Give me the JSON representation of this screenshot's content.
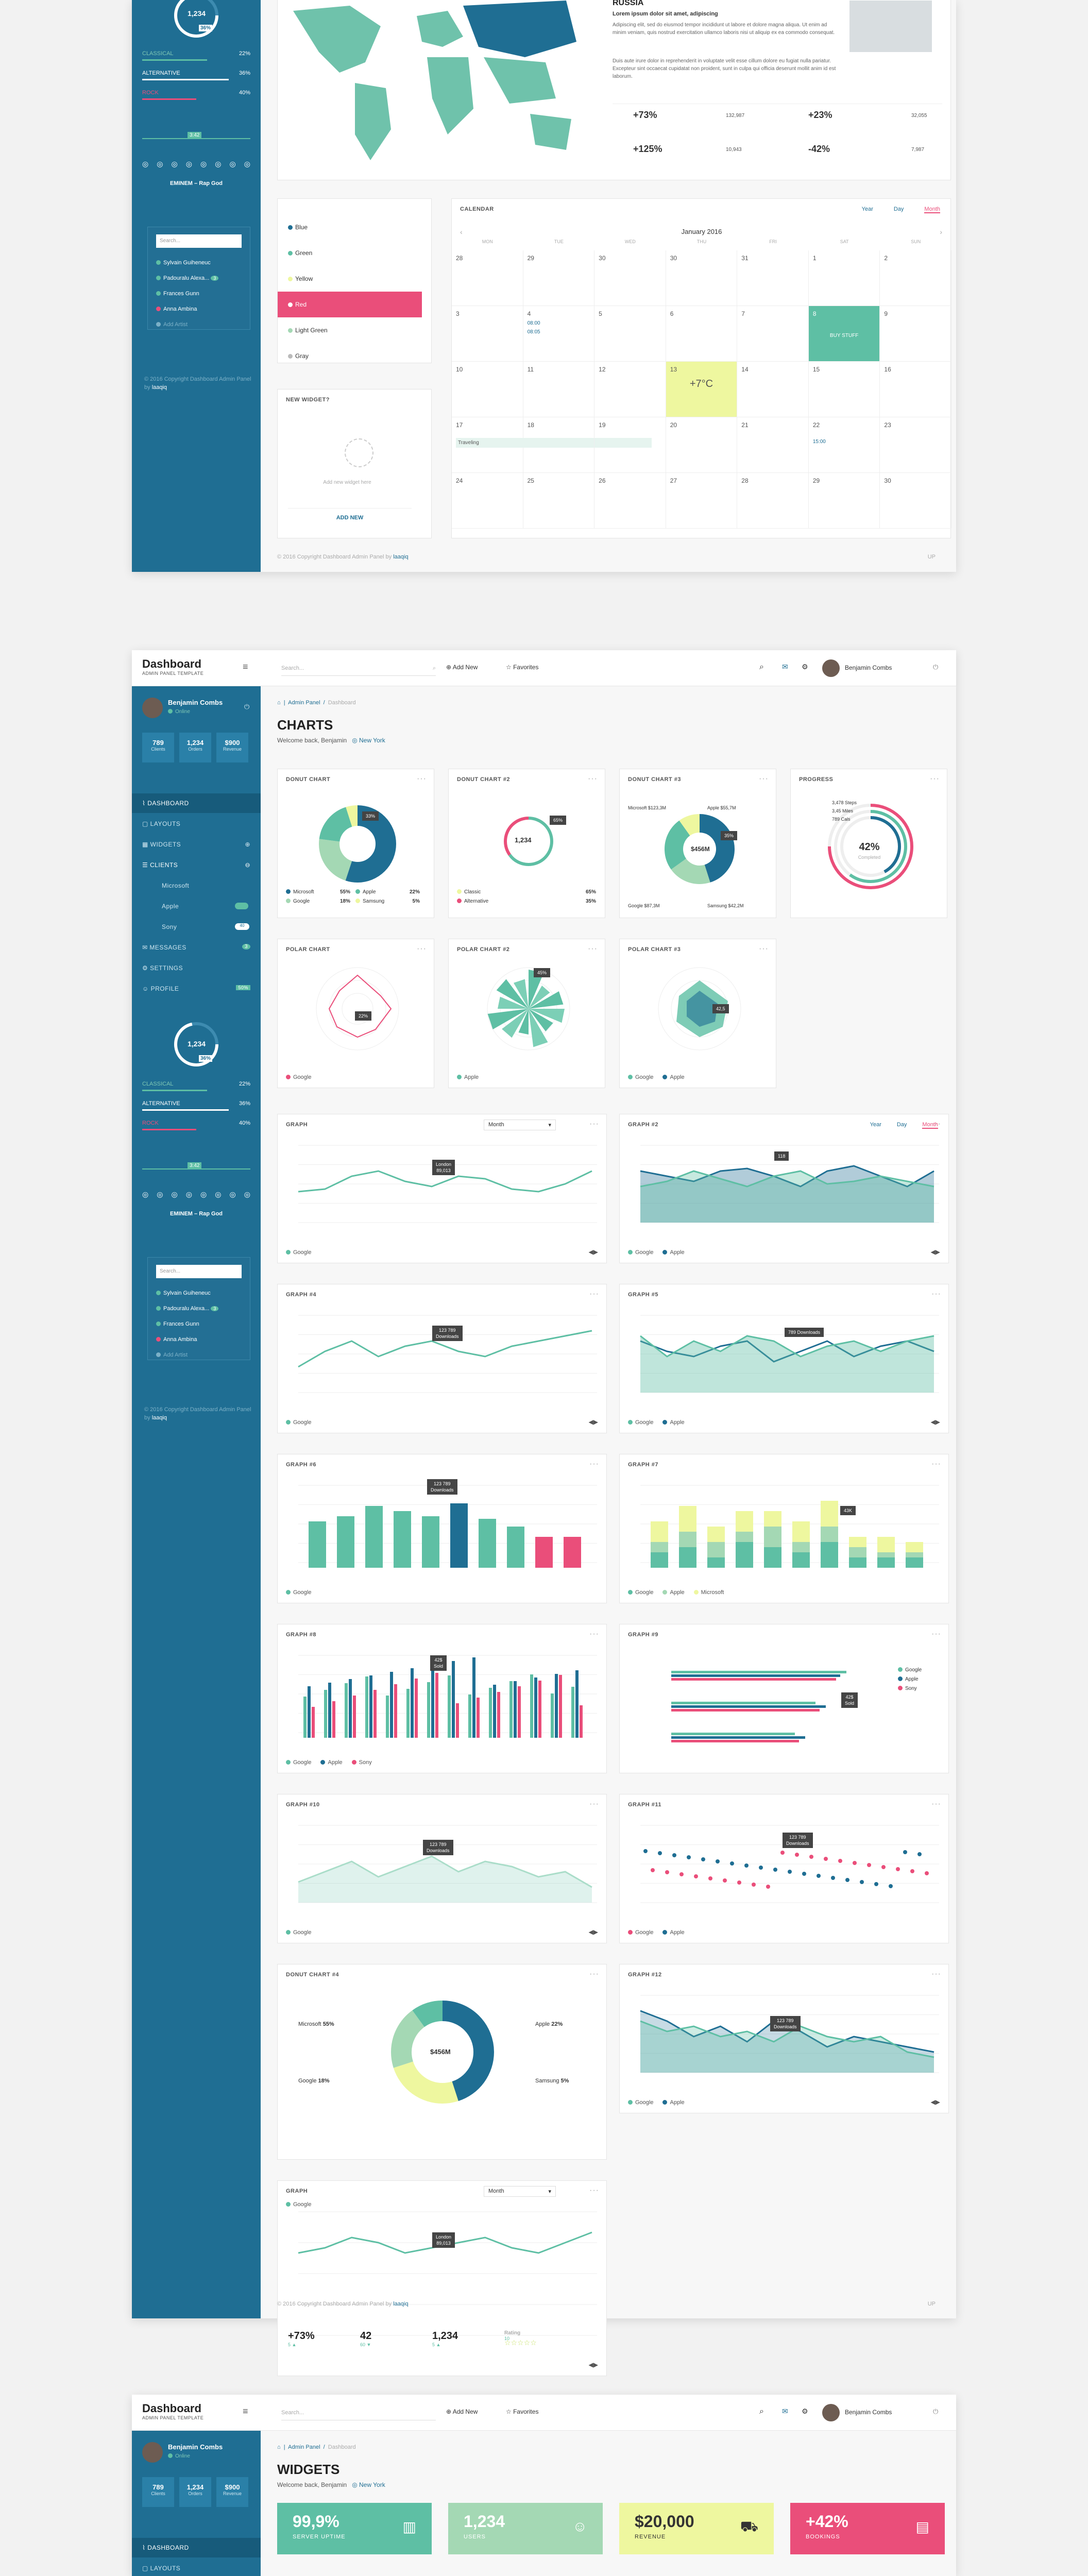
{
  "top_section": {
    "sidebar": {
      "donut_value": "1,234",
      "donut_pct": "36%",
      "stats": [
        {
          "label": "CLASSICAL",
          "value": "22%"
        },
        {
          "label": "ALTERNATIVE",
          "value": "36%"
        },
        {
          "label": "ROCK",
          "value": "40%"
        }
      ],
      "track_time": "3:42",
      "track_name": "EMINEM – Rap God",
      "search_placeholder": "Search...",
      "users": [
        "Sylvain Guiheneuc",
        "Padouralu Alexa...",
        "Frances Gunn",
        "Anna Ambina",
        "Add Artist"
      ],
      "user_badge": "3",
      "footer": "© 2016 Copyright Dashboard Admin Panel by",
      "footer_link": "laaqiq"
    },
    "map_card": {
      "country": "RUSSIA",
      "lead": "Lorem ipsum dolor sit amet, adipiscing",
      "para1": "Adipiscing elit, sed do eiusmod tempor incididunt ut labore et dolore magna aliqua. Ut enim ad minim veniam, quis nostrud exercitation ullamco laboris nisi ut aliquip ex ea commodo consequat.",
      "para2": "Duis aute irure dolor in reprehenderit in voluptate velit esse cillum dolore eu fugiat nulla pariatur. Excepteur sint occaecat cupidatat non proident, sunt in culpa qui officia deserunt mollit anim id est laborum.",
      "metrics": [
        {
          "pct": "+73%",
          "num": "132,987"
        },
        {
          "pct": "+23%",
          "num": "32,055"
        },
        {
          "pct": "+125%",
          "num": "10,943"
        },
        {
          "pct": "-42%",
          "num": "7,987"
        }
      ]
    },
    "color_list": [
      "Blue",
      "Green",
      "Yellow",
      "Red",
      "Light Green",
      "Gray"
    ],
    "widget": {
      "title": "NEW WIDGET?",
      "hint": "Add new widget here",
      "button": "ADD NEW"
    },
    "calendar": {
      "title": "CALENDAR",
      "tabs": [
        "Year",
        "Day",
        "Month"
      ],
      "month": "January 2016",
      "days": [
        "MON",
        "TUE",
        "WED",
        "THU",
        "FRI",
        "SAT",
        "SUN"
      ],
      "rows": [
        [
          "28",
          "29",
          "30",
          "30",
          "31",
          "1",
          "2"
        ],
        [
          "3",
          "4",
          "5",
          "6",
          "7",
          "8",
          "9"
        ],
        [
          "10",
          "11",
          "12",
          "13",
          "14",
          "15",
          "16"
        ],
        [
          "17",
          "18",
          "19",
          "20",
          "21",
          "22",
          "23"
        ],
        [
          "24",
          "25",
          "26",
          "27",
          "28",
          "29",
          "30"
        ]
      ],
      "event_times": [
        "08:00",
        "08:05",
        "15:00"
      ],
      "buy_label": "BUY STUFF",
      "weather": "+7°C",
      "traveling": "Traveling"
    },
    "footer": "© 2016 Copyright Dashboard Admin Panel by",
    "footer_link": "laaqiq",
    "up": "UP"
  },
  "charts_page": {
    "brand": "Dashboard",
    "brand_sub": "ADMIN PANEL TEMPLATE",
    "search_placeholder": "Search...",
    "add_new": "Add New",
    "favorites": "Favorites",
    "user_name": "Benjamin Combs",
    "user_status": "Online",
    "profile_stats": [
      {
        "value": "789",
        "label": "Clients"
      },
      {
        "value": "1,234",
        "label": "Orders"
      },
      {
        "value": "$900",
        "label": "Revenue"
      }
    ],
    "nav": [
      "DASHBOARD",
      "LAYOUTS",
      "WIDGETS",
      "CLIENTS",
      "Microsoft",
      "Apple",
      "Sony",
      "MESSAGES",
      "SETTINGS",
      "PROFILE"
    ],
    "nav_badges": {
      "messages": "3",
      "profile": "50%",
      "sony": "40"
    },
    "breadcrumb": [
      "Admin Panel",
      "Dashboard"
    ],
    "title": "CHARTS",
    "welcome": "Welcome back, Benjamin",
    "location": "New York",
    "cards": {
      "donut1": "DONUT CHART",
      "donut2": "DONUT CHART #2",
      "donut3": "DONUT CHART #3",
      "progress": "PROGRESS",
      "polar1": "POLAR CHART",
      "polar2": "POLAR CHART #2",
      "polar3": "POLAR CHART #3",
      "graph": "GRAPH",
      "graph2": "GRAPH #2",
      "graph4": "GRAPH #4",
      "graph5": "GRAPH #5",
      "graph6": "GRAPH #6",
      "graph7": "GRAPH #7",
      "graph8": "GRAPH #8",
      "graph9": "GRAPH #9",
      "graph10": "GRAPH #10",
      "graph11": "GRAPH #11",
      "donut4": "DONUT CHART #4",
      "graph12": "GRAPH #12",
      "graph_last": "GRAPH"
    },
    "month_select": "Month",
    "donut_center": "$456M",
    "donut2_center": "1,234",
    "donut2_tag": "65%",
    "donut1_tag": "33%",
    "donut3_labels": [
      "Microsoft $123,3M",
      "Apple $55,7M",
      "Google $87,3M",
      "Samsung $42,2M"
    ],
    "donut3_tag": "35%",
    "progress_labels": [
      "3,478 Steps",
      "3,45 Miles",
      "789 Cals"
    ],
    "progress_center": "42%",
    "progress_sub": "Completed",
    "legend_donut1": [
      {
        "name": "Microsoft",
        "value": "55%"
      },
      {
        "name": "Apple",
        "value": "22%"
      },
      {
        "name": "Google",
        "value": "18%"
      },
      {
        "name": "Samsung",
        "value": "5%"
      }
    ],
    "legend_donut2": [
      {
        "name": "Classic",
        "value": "65%"
      },
      {
        "name": "Alternative",
        "value": "35%"
      }
    ],
    "legend_google": "Google",
    "legend_apple": "Apple",
    "legend_microsoft": "Microsoft",
    "legend_sony": "Sony",
    "polar1_tag": "22%",
    "polar2_tag": "45%",
    "polar3_tag": "42,5",
    "tooltip_london": "London",
    "tooltip_london_val": "89,013",
    "tooltip_downloads": "123 789",
    "tooltip_downloads_sub": "Downloads",
    "tooltip_118": "118",
    "tooltip_789": "789 Downloads",
    "tooltip_43k": "43K",
    "tooltip_42": "42$",
    "tooltip_42_sub": "Sold",
    "tab_year": "Year",
    "tab_day": "Day",
    "tab_month": "Month",
    "donut4_labels": [
      {
        "name": "Microsoft",
        "value": "55%"
      },
      {
        "name": "Apple",
        "value": "22%"
      },
      {
        "name": "Google",
        "value": "18%"
      },
      {
        "name": "Samsung",
        "value": "5%"
      }
    ],
    "bottom_stats": [
      {
        "value": "+73%",
        "sub": "5 ▲"
      },
      {
        "value": "42",
        "sub": "60 ▼"
      },
      {
        "value": "1,234",
        "sub": "5 ▲"
      },
      {
        "value": "Rating",
        "sub": "10"
      }
    ],
    "footer": "© 2016 Copyright Dashboard Admin Panel by",
    "footer_link": "laaqiq",
    "up": "UP"
  },
  "widgets_page": {
    "brand": "Dashboard",
    "brand_sub": "ADMIN PANEL TEMPLATE",
    "search_placeholder": "Search...",
    "add_new": "Add New",
    "favorites": "Favorites",
    "user_name": "Benjamin Combs",
    "user_status": "Online",
    "profile_stats": [
      {
        "value": "789",
        "label": "Clients"
      },
      {
        "value": "1,234",
        "label": "Orders"
      },
      {
        "value": "$900",
        "label": "Revenue"
      }
    ],
    "breadcrumb": [
      "Admin Panel",
      "Dashboard"
    ],
    "title": "WIDGETS",
    "welcome": "Welcome back, Benjamin",
    "location": "New York",
    "nav": [
      "DASHBOARD",
      "LAYOUTS"
    ],
    "stats": [
      {
        "value": "99,9%",
        "label": "SERVER UPTIME"
      },
      {
        "value": "1,234",
        "label": "USERS"
      },
      {
        "value": "$20,000",
        "label": "REVENUE"
      },
      {
        "value": "+42%",
        "label": "BOOKINGS"
      }
    ]
  },
  "colors": {
    "teal": "#5ebfa4",
    "blue": "#1f6e93",
    "pink": "#ea4e7a",
    "yellow": "#eef79f",
    "lightgreen": "#a4d8b4"
  }
}
